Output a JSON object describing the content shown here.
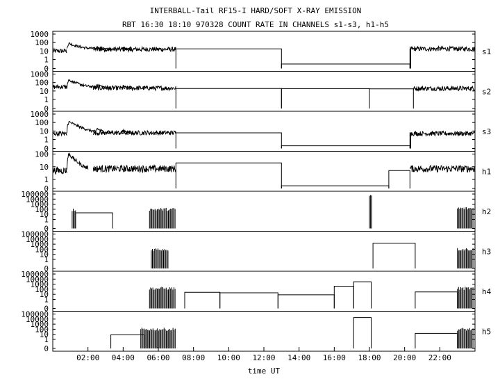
{
  "chart_data": {
    "type": "line",
    "title": "INTERBALL-Tail RF15-I HARD/SOFT X-RAY EMISSION",
    "subtitle": "RBT 16:30 18:10 970328  COUNT RATE IN CHANNELS s1-s3, h1-h5",
    "xlabel": "time UT",
    "x_range_hours": [
      0,
      24
    ],
    "x_ticks": [
      {
        "value": 2,
        "label": "02:00"
      },
      {
        "value": 4,
        "label": "04:00"
      },
      {
        "value": 6,
        "label": "06:00"
      },
      {
        "value": 8,
        "label": "08:00"
      },
      {
        "value": 10,
        "label": "10:00"
      },
      {
        "value": 12,
        "label": "12:00"
      },
      {
        "value": 14,
        "label": "14:00"
      },
      {
        "value": 16,
        "label": "16:00"
      },
      {
        "value": 18,
        "label": "18:00"
      },
      {
        "value": 20,
        "label": "20:00"
      },
      {
        "value": 22,
        "label": "22:00"
      }
    ],
    "y_scale": "log",
    "panels": [
      {
        "name": "s1",
        "y_ticks": [
          "1000",
          "100",
          "10",
          "1",
          "0"
        ],
        "noisy": [
          [
            0.0,
            0.8,
            10
          ],
          [
            2.3,
            7.0,
            16
          ],
          [
            20.3,
            24.0,
            18
          ]
        ],
        "decay": [
          [
            0.8,
            2.4,
            80,
            18,
            2.5
          ],
          [
            2.4,
            3.3,
            30,
            15,
            4
          ],
          [
            3.9,
            4.6,
            25,
            15,
            5
          ]
        ],
        "steps": [
          [
            7.0,
            13.0,
            18
          ],
          [
            13.0,
            20.3,
            0.5
          ],
          [
            20.3,
            20.35,
            18
          ]
        ]
      },
      {
        "name": "s2",
        "y_ticks": [
          "1000",
          "100",
          "10",
          "1",
          "0"
        ],
        "noisy": [
          [
            0.0,
            0.8,
            30
          ],
          [
            2.3,
            7.0,
            22
          ],
          [
            20.5,
            24.0,
            20
          ]
        ],
        "decay": [
          [
            0.8,
            2.4,
            200,
            25,
            2.5
          ],
          [
            2.4,
            3.3,
            60,
            22,
            4
          ],
          [
            3.9,
            4.6,
            40,
            20,
            5
          ]
        ],
        "steps": [
          [
            7.0,
            13.0,
            20
          ],
          [
            13.0,
            18.0,
            19
          ],
          [
            18.0,
            20.5,
            18
          ]
        ]
      },
      {
        "name": "s3",
        "y_ticks": [
          "1000",
          "100",
          "10",
          "1",
          "0"
        ],
        "noisy": [
          [
            0.0,
            0.8,
            5
          ],
          [
            2.3,
            7.0,
            6
          ],
          [
            20.3,
            24.0,
            5
          ]
        ],
        "decay": [
          [
            0.8,
            2.4,
            120,
            6,
            2.5
          ],
          [
            2.4,
            3.3,
            20,
            5,
            4
          ],
          [
            3.9,
            4.6,
            12,
            5,
            5
          ]
        ],
        "steps": [
          [
            7.0,
            13.0,
            6
          ],
          [
            13.0,
            20.3,
            0.3
          ],
          [
            20.3,
            20.35,
            6
          ]
        ]
      },
      {
        "name": "h1",
        "y_ticks": [
          "100",
          "10",
          "1",
          "0"
        ],
        "noisy": [
          [
            0.0,
            0.8,
            5
          ],
          [
            2.3,
            7.0,
            7
          ],
          [
            20.3,
            24.0,
            7
          ]
        ],
        "decay": [
          [
            0.8,
            2.0,
            100,
            6,
            3.5
          ]
        ],
        "steps": [
          [
            7.0,
            13.0,
            20
          ],
          [
            13.0,
            19.1,
            0.3
          ],
          [
            19.1,
            20.3,
            5
          ]
        ]
      },
      {
        "name": "h2",
        "y_ticks": [
          "100000",
          "10000",
          "1000",
          "100",
          "10",
          "1",
          "0"
        ],
        "spikes": [
          [
            1.1,
            1.3,
            80
          ],
          [
            5.5,
            7.0,
            100
          ],
          [
            18.0,
            18.15,
            50000
          ],
          [
            23.0,
            23.9,
            150
          ]
        ],
        "steps": [
          [
            1.3,
            3.4,
            20
          ]
        ]
      },
      {
        "name": "h3",
        "y_ticks": [
          "100000",
          "10000",
          "1000",
          "100",
          "10",
          "1",
          "0"
        ],
        "spikes": [
          [
            5.6,
            6.6,
            100
          ],
          [
            23.0,
            23.9,
            100
          ]
        ],
        "steps": [
          [
            18.2,
            20.6,
            1500
          ]
        ]
      },
      {
        "name": "h4",
        "y_ticks": [
          "100000",
          "10000",
          "1000",
          "100",
          "10",
          "1",
          "0"
        ],
        "spikes": [
          [
            5.5,
            7.0,
            150
          ],
          [
            23.0,
            23.9,
            150
          ]
        ],
        "steps": [
          [
            7.5,
            9.5,
            25
          ],
          [
            9.5,
            12.8,
            20
          ],
          [
            12.8,
            16.0,
            8
          ],
          [
            16.0,
            17.1,
            400
          ],
          [
            17.1,
            18.1,
            3000
          ],
          [
            20.6,
            23.0,
            30
          ]
        ]
      },
      {
        "name": "h5",
        "y_ticks": [
          "100000",
          "10000",
          "1000",
          "100",
          "10",
          "1",
          "0"
        ],
        "spikes": [
          [
            5.0,
            7.0,
            100
          ],
          [
            23.0,
            23.9,
            100
          ]
        ],
        "steps": [
          [
            3.3,
            5.2,
            8
          ],
          [
            17.1,
            18.1,
            20000
          ],
          [
            20.6,
            23.0,
            15
          ]
        ]
      }
    ]
  }
}
